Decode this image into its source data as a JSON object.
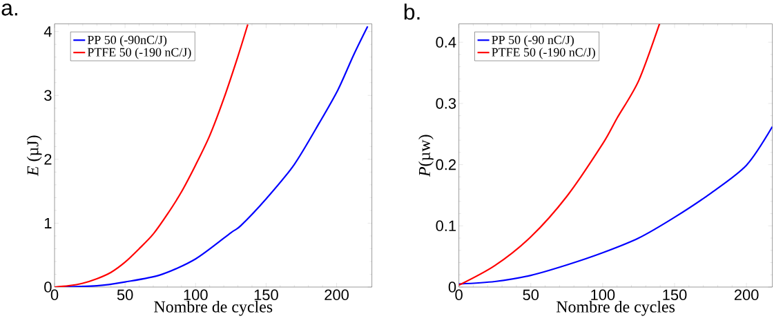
{
  "chart_data": [
    {
      "type": "line",
      "title": "a.",
      "xlabel": "Nombre de cycles",
      "ylabel": "*E* (µJ)",
      "xlim": [
        0,
        225
      ],
      "ylim": [
        0,
        4.12
      ],
      "xticks": [
        0,
        50,
        100,
        150,
        200
      ],
      "yticks": [
        0,
        1,
        2,
        3,
        4
      ],
      "legend": "top left",
      "grid": false,
      "marker": "none",
      "line_style": "solid",
      "series": [
        {
          "name": "PP 50 (-90nC/J)",
          "color": "#0000ff",
          "x": [
            0,
            30,
            50,
            75,
            100,
            125,
            132,
            150,
            170,
            188,
            201,
            212,
            222
          ],
          "values": [
            0,
            0.02,
            0.08,
            0.19,
            0.44,
            0.85,
            0.96,
            1.38,
            1.92,
            2.58,
            3.09,
            3.63,
            4.08
          ]
        },
        {
          "name": "PTFE 50 (-190 nC/J)",
          "color": "#ff0000",
          "x": [
            0,
            10,
            20,
            30,
            40,
            50,
            60,
            70,
            80,
            90,
            100,
            110,
            120,
            130,
            137
          ],
          "values": [
            0,
            0.02,
            0.06,
            0.13,
            0.23,
            0.39,
            0.6,
            0.83,
            1.14,
            1.49,
            1.91,
            2.37,
            2.95,
            3.61,
            4.11
          ]
        }
      ]
    },
    {
      "type": "line",
      "title": "b.",
      "xlabel": "Nombre de cycles",
      "ylabel": "*P*(µw)",
      "xlim": [
        0,
        218
      ],
      "ylim": [
        0,
        0.43
      ],
      "xticks": [
        0,
        50,
        100,
        150,
        200
      ],
      "yticks": [
        0,
        0.1,
        0.2,
        0.3,
        0.4
      ],
      "legend": "top left",
      "grid": false,
      "marker": "none",
      "line_style": "solid",
      "series": [
        {
          "name": "PP 50 (-90 nC/J)",
          "color": "#0000ff",
          "x": [
            0,
            25,
            50,
            75,
            100,
            125,
            150,
            175,
            200,
            218
          ],
          "values": [
            0.005,
            0.009,
            0.019,
            0.036,
            0.056,
            0.08,
            0.114,
            0.153,
            0.199,
            0.262
          ]
        },
        {
          "name": "PTFE 50 (-190 nC/J)",
          "color": "#ff0000",
          "x": [
            0,
            25,
            50,
            75,
            100,
            110,
            125,
            139.5
          ],
          "values": [
            0.003,
            0.035,
            0.082,
            0.148,
            0.234,
            0.276,
            0.337,
            0.43
          ]
        }
      ]
    }
  ]
}
